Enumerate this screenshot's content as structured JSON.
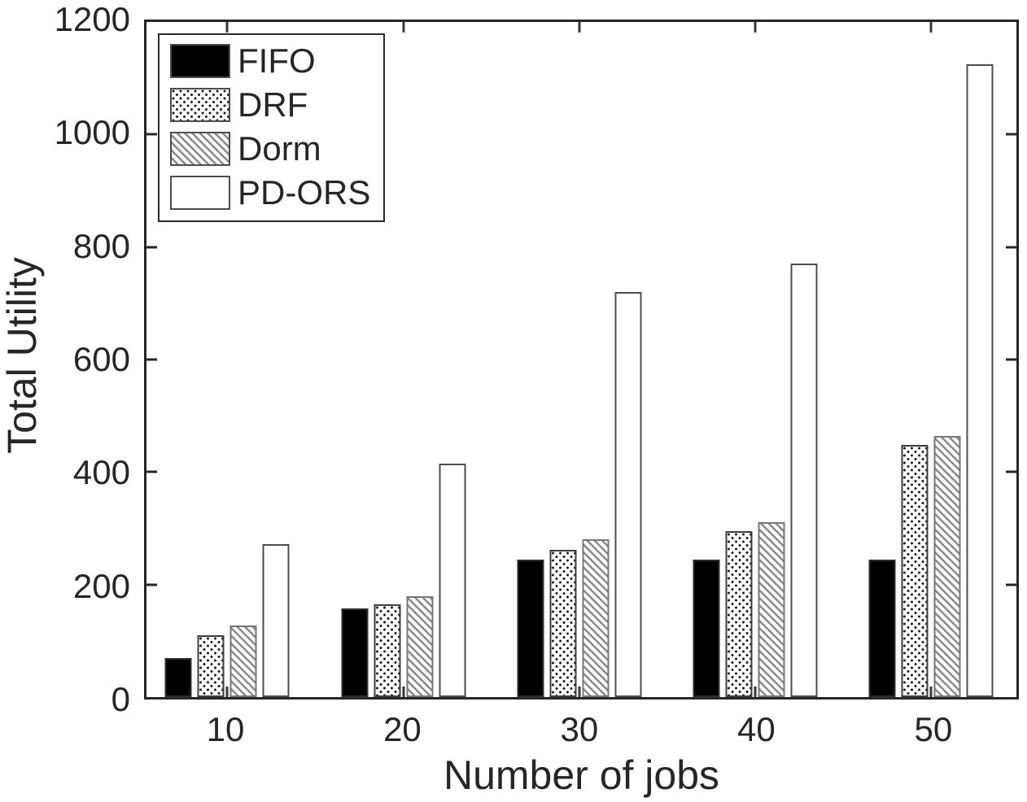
{
  "colors": {
    "background": "#ffffff",
    "axis": "#262626",
    "bar_edge": "#4d4d4d",
    "hatch_line": "#8a8a8a",
    "text": "#262626"
  },
  "chart_data": {
    "type": "bar",
    "title": "",
    "xlabel": "Number of jobs",
    "ylabel": "Total Utility",
    "categories": [
      "10",
      "20",
      "30",
      "40",
      "50"
    ],
    "series": [
      {
        "name": "FIFO",
        "pattern": "solid-black",
        "values": [
          70,
          158,
          245,
          245,
          245
        ]
      },
      {
        "name": "DRF",
        "pattern": "dots",
        "values": [
          110,
          165,
          262,
          295,
          448
        ]
      },
      {
        "name": "Dorm",
        "pattern": "diagonal-hatch",
        "values": [
          127,
          180,
          280,
          311,
          464
        ]
      },
      {
        "name": "PD-ORS",
        "pattern": "white",
        "values": [
          272,
          415,
          720,
          770,
          1125
        ]
      }
    ],
    "ylim": [
      0,
      1200
    ],
    "yticks": [
      0,
      200,
      400,
      600,
      800,
      1000,
      1200
    ],
    "legend_position": "top-left",
    "legend_entries": [
      "FIFO",
      "DRF",
      "Dorm",
      "PD-ORS"
    ],
    "grid": false
  }
}
